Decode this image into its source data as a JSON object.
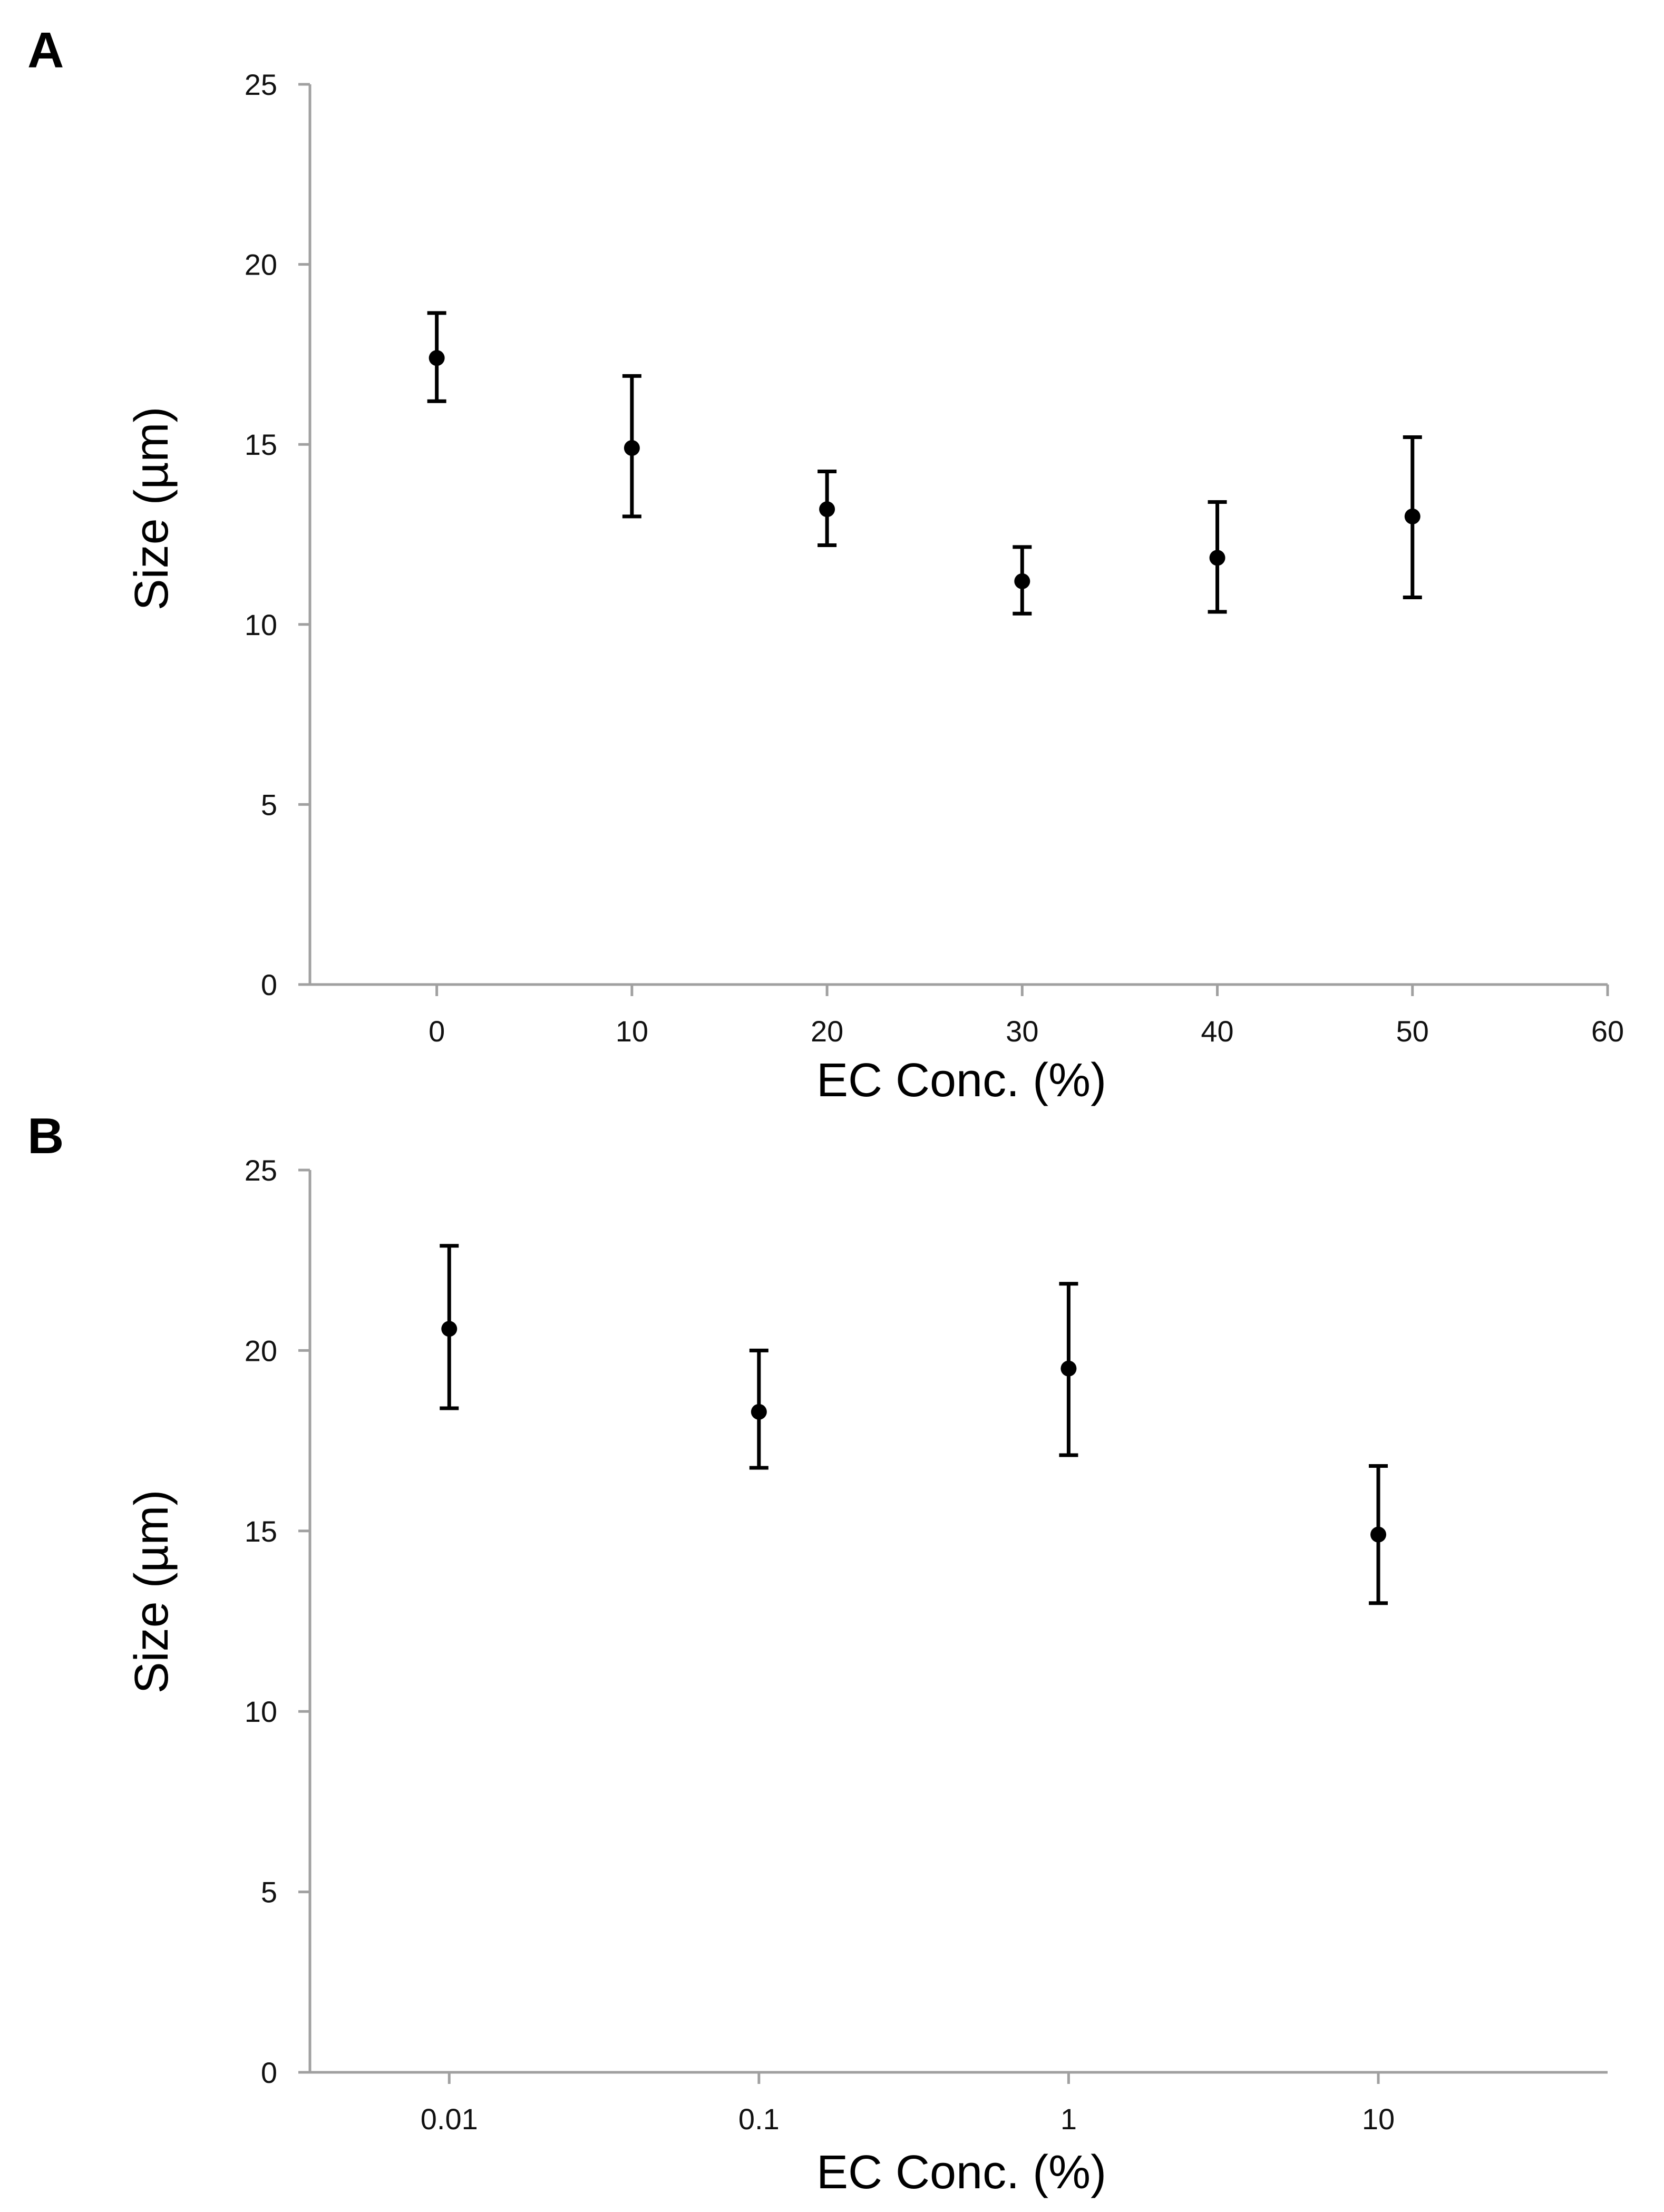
{
  "chart_data": [
    {
      "panel": "A",
      "type": "scatter",
      "xscale": "linear",
      "xlim": [
        -6.5,
        60
      ],
      "ylim": [
        0,
        25
      ],
      "xticks": [
        0,
        10,
        20,
        30,
        40,
        50,
        60
      ],
      "xtick_labels": [
        "0",
        "10",
        "20",
        "30",
        "40",
        "50",
        "60"
      ],
      "yticks": [
        0,
        5,
        10,
        15,
        20,
        25
      ],
      "ytick_labels": [
        "0",
        "5",
        "10",
        "15",
        "20",
        "25"
      ],
      "xlabel": "EC Conc. (%)",
      "ylabel": "Size (µm)",
      "series": [
        {
          "name": "Size",
          "x": [
            0,
            10,
            20,
            30,
            40,
            50
          ],
          "y": [
            17.4,
            14.9,
            13.2,
            11.2,
            11.85,
            13.0
          ],
          "err_low": [
            16.2,
            13.0,
            12.2,
            10.3,
            10.35,
            10.75
          ],
          "err_high": [
            18.65,
            16.9,
            14.25,
            12.15,
            13.4,
            15.2
          ]
        }
      ]
    },
    {
      "panel": "B",
      "type": "scatter",
      "xscale": "log",
      "xlim": [
        0.00355,
        55
      ],
      "ylim": [
        0,
        25
      ],
      "xticks": [
        0.01,
        0.1,
        1,
        10
      ],
      "xtick_labels": [
        "0.01",
        "0.1",
        "1",
        "10"
      ],
      "yticks": [
        0,
        5,
        10,
        15,
        20,
        25
      ],
      "ytick_labels": [
        "0",
        "5",
        "10",
        "15",
        "20",
        "25"
      ],
      "xlabel": "EC Conc. (%)",
      "ylabel": "Size (µm)",
      "series": [
        {
          "name": "Size",
          "x": [
            0.01,
            0.1,
            1,
            10
          ],
          "y": [
            20.6,
            18.3,
            19.5,
            14.9
          ],
          "err_low": [
            18.4,
            16.75,
            17.1,
            13.0
          ],
          "err_high": [
            22.9,
            20.0,
            21.85,
            16.8
          ]
        }
      ]
    }
  ]
}
